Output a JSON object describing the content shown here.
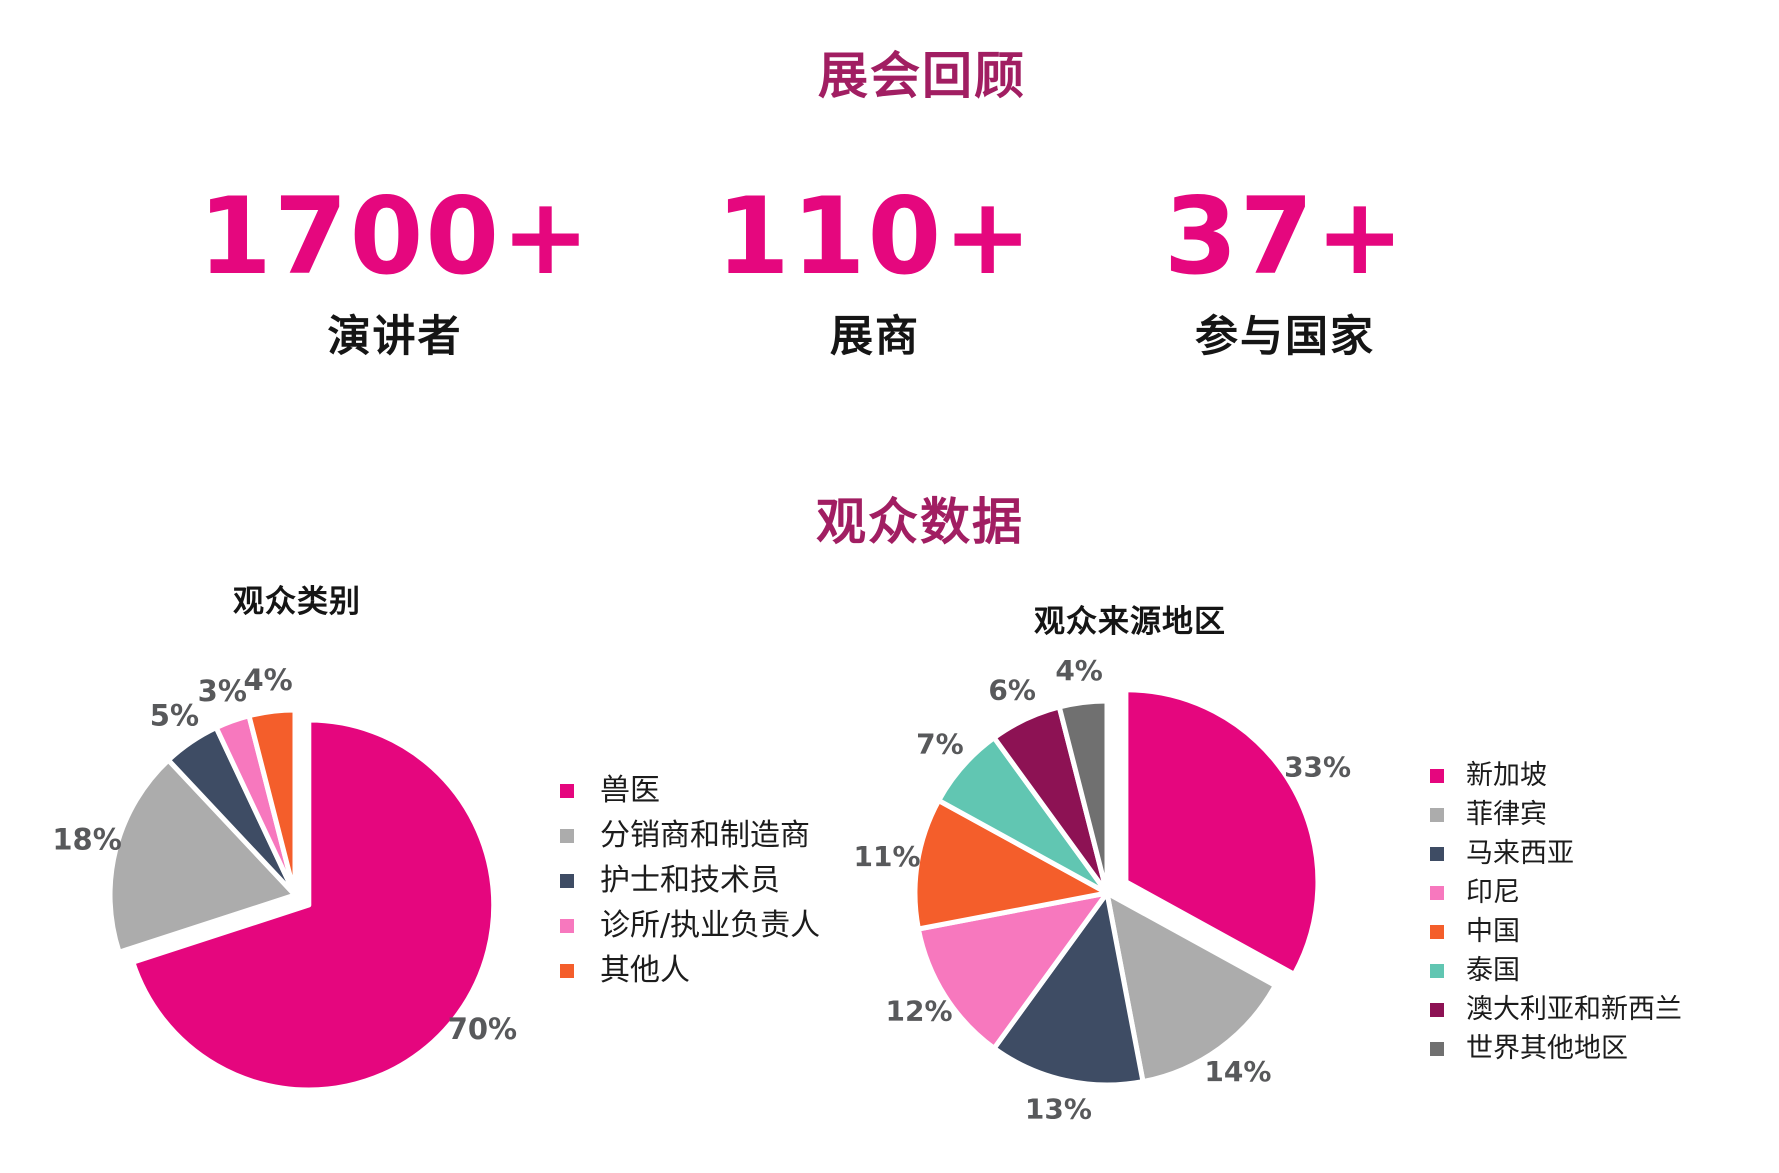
{
  "page": {
    "title": "展会回顾",
    "audience_section_title": "观众数据"
  },
  "stats": [
    {
      "value": "1700+",
      "label": "演讲者"
    },
    {
      "value": "110+",
      "label": "展商"
    },
    {
      "value": "37+",
      "label": "参与国家"
    }
  ],
  "colors": {
    "heading": "#A11E62",
    "accent": "#E5077E",
    "percent_label": "#58595B",
    "text": "#151515"
  },
  "chart_data": [
    {
      "type": "pie",
      "title": "观众类别",
      "unit": "%",
      "start_angle_deg": 0,
      "direction": "clockwise",
      "legend_position": "right",
      "exploded_slice": "兽医",
      "slices": [
        {
          "label": "兽医",
          "value": 70,
          "color": "#E5067E"
        },
        {
          "label": "分销商和制造商",
          "value": 18,
          "color": "#ACACAC"
        },
        {
          "label": "护士和技术员",
          "value": 5,
          "color": "#3E4C64"
        },
        {
          "label": "诊所/执业负责人",
          "value": 3,
          "color": "#F778BE"
        },
        {
          "label": "其他人",
          "value": 4,
          "color": "#F45E2B"
        }
      ]
    },
    {
      "type": "pie",
      "title": "观众来源地区",
      "unit": "%",
      "start_angle_deg": 0,
      "direction": "clockwise",
      "legend_position": "right",
      "exploded_slice": "新加坡",
      "slices": [
        {
          "label": "新加坡",
          "value": 33,
          "color": "#E5067E"
        },
        {
          "label": "菲律宾",
          "value": 14,
          "color": "#ACACAC"
        },
        {
          "label": "马来西亚",
          "value": 13,
          "color": "#3E4C64"
        },
        {
          "label": "印尼",
          "value": 12,
          "color": "#F778BE"
        },
        {
          "label": "中国",
          "value": 11,
          "color": "#F45E2B"
        },
        {
          "label": "泰国",
          "value": 7,
          "color": "#61C6B2"
        },
        {
          "label": "澳大利亚和新西兰",
          "value": 6,
          "color": "#8D1254"
        },
        {
          "label": "世界其他地区",
          "value": 4,
          "color": "#707070"
        }
      ]
    }
  ]
}
